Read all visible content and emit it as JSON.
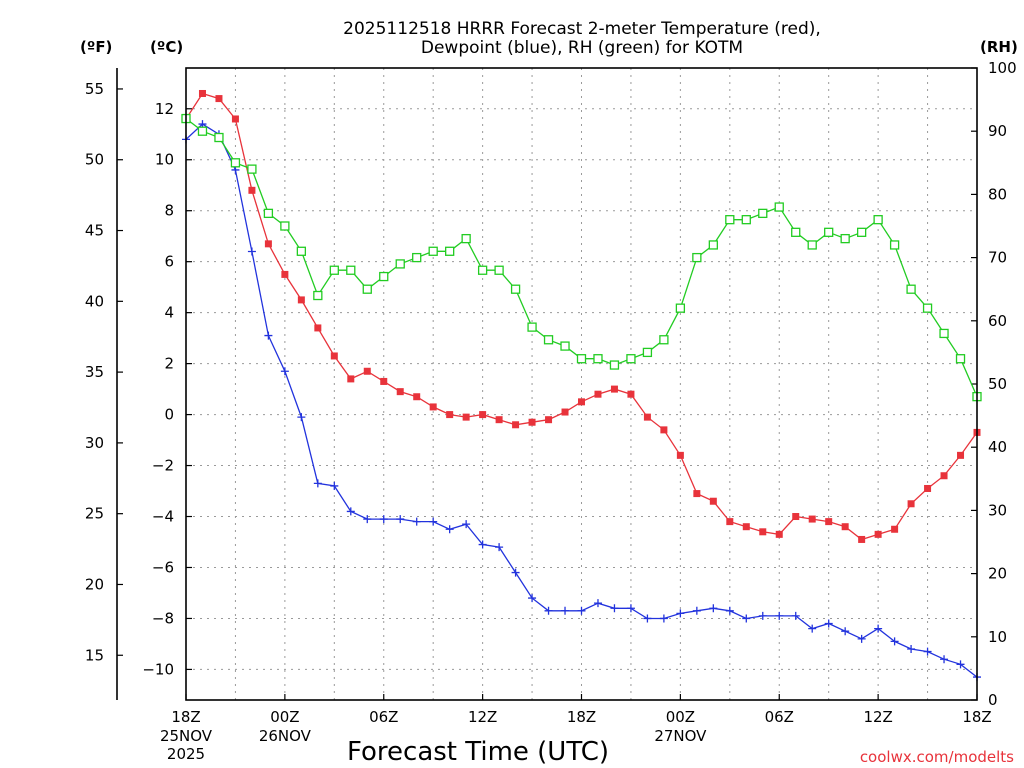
{
  "chart_data": {
    "type": "line",
    "title_line1": "2025112518 HRRR Forecast 2-meter Temperature (red),",
    "title_line2": "Dewpoint (blue), RH (green) for KOTM",
    "xlabel": "Forecast Time (UTC)",
    "credit": "coolwx.com/modelts",
    "unit_labels": {
      "fahrenheit": "(ºF)",
      "celsius": "(ºC)",
      "rh": "(RH)"
    },
    "x_range_hours": [
      0,
      48
    ],
    "celsius_axis": {
      "min": -11.2,
      "max": 13.6,
      "ticks": [
        "12",
        "10",
        "8",
        "6",
        "4",
        "2",
        "0",
        "−2",
        "−4",
        "−6",
        "−8",
        "−10"
      ],
      "tick_values": [
        12,
        10,
        8,
        6,
        4,
        2,
        0,
        -2,
        -4,
        -6,
        -8,
        -10
      ]
    },
    "fahrenheit_axis": {
      "ticks": [
        "55",
        "50",
        "45",
        "40",
        "35",
        "30",
        "25",
        "20",
        "15"
      ],
      "tick_values": [
        55,
        50,
        45,
        40,
        35,
        30,
        25,
        20,
        15
      ]
    },
    "rh_axis": {
      "min": 0,
      "max": 100,
      "ticks": [
        "100",
        "90",
        "80",
        "70",
        "60",
        "50",
        "40",
        "30",
        "20",
        "10",
        "0"
      ],
      "tick_values": [
        100,
        90,
        80,
        70,
        60,
        50,
        40,
        30,
        20,
        10,
        0
      ]
    },
    "x_ticks": [
      {
        "hour": 0,
        "label": "18Z",
        "sub1": "25NOV",
        "sub2": "2025"
      },
      {
        "hour": 6,
        "label": "00Z",
        "sub1": "26NOV",
        "sub2": ""
      },
      {
        "hour": 12,
        "label": "06Z",
        "sub1": "",
        "sub2": ""
      },
      {
        "hour": 18,
        "label": "12Z",
        "sub1": "",
        "sub2": ""
      },
      {
        "hour": 24,
        "label": "18Z",
        "sub1": "",
        "sub2": ""
      },
      {
        "hour": 30,
        "label": "00Z",
        "sub1": "27NOV",
        "sub2": ""
      },
      {
        "hour": 36,
        "label": "06Z",
        "sub1": "",
        "sub2": ""
      },
      {
        "hour": 42,
        "label": "12Z",
        "sub1": "",
        "sub2": ""
      },
      {
        "hour": 48,
        "label": "18Z",
        "sub1": "",
        "sub2": ""
      }
    ],
    "series": [
      {
        "name": "2-meter Temperature (°C)",
        "axis": "celsius",
        "color": "#e8333b",
        "marker": "filled-square",
        "values": [
          11.6,
          12.6,
          12.4,
          11.6,
          8.8,
          6.7,
          5.5,
          4.5,
          3.4,
          2.3,
          1.4,
          1.7,
          1.3,
          0.9,
          0.7,
          0.3,
          0.0,
          -0.1,
          0.0,
          -0.2,
          -0.4,
          -0.3,
          -0.2,
          0.1,
          0.5,
          0.8,
          1.0,
          0.8,
          -0.1,
          -0.6,
          -1.6,
          -3.1,
          -3.4,
          -4.2,
          -4.4,
          -4.6,
          -4.7,
          -4.0,
          -4.1,
          -4.2,
          -4.4,
          -4.9,
          -4.7,
          -4.5,
          -3.5,
          -2.9,
          -2.4,
          -1.6,
          -0.7
        ]
      },
      {
        "name": "Dewpoint (°C)",
        "axis": "celsius",
        "color": "#2233dd",
        "marker": "plus",
        "values": [
          10.8,
          11.4,
          11.0,
          9.6,
          6.4,
          3.1,
          1.7,
          -0.1,
          -2.7,
          -2.8,
          -3.8,
          -4.1,
          -4.1,
          -4.1,
          -4.2,
          -4.2,
          -4.5,
          -4.3,
          -5.1,
          -5.2,
          -6.2,
          -7.2,
          -7.7,
          -7.7,
          -7.7,
          -7.4,
          -7.6,
          -7.6,
          -8.0,
          -8.0,
          -7.8,
          -7.7,
          -7.6,
          -7.7,
          -8.0,
          -7.9,
          -7.9,
          -7.9,
          -8.4,
          -8.2,
          -8.5,
          -8.8,
          -8.4,
          -8.9,
          -9.2,
          -9.3,
          -9.6,
          -9.8,
          -10.3
        ]
      },
      {
        "name": "RH (%)",
        "axis": "rh",
        "color": "#22cc22",
        "marker": "open-square",
        "values": [
          92,
          90,
          89,
          85,
          84,
          77,
          75,
          71,
          64,
          68,
          68,
          65,
          67,
          69,
          70,
          71,
          71,
          73,
          68,
          68,
          65,
          59,
          57,
          56,
          54,
          54,
          53,
          54,
          55,
          57,
          62,
          70,
          72,
          76,
          76,
          77,
          78,
          74,
          72,
          74,
          73,
          74,
          76,
          72,
          65,
          62,
          58,
          54,
          48
        ]
      }
    ]
  }
}
